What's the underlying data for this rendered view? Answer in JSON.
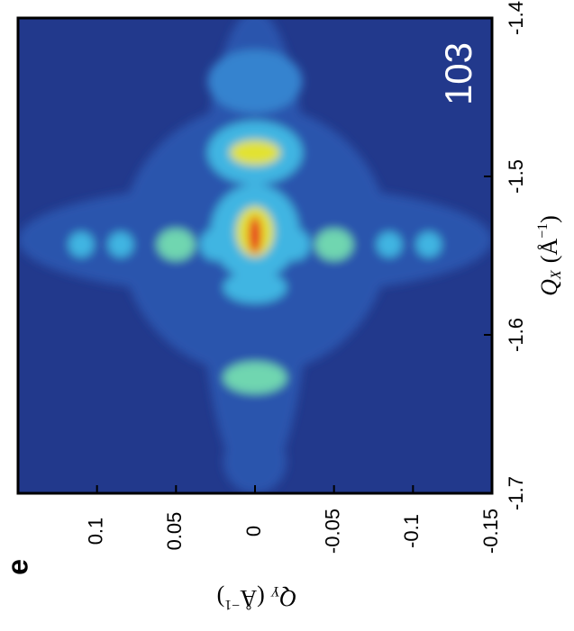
{
  "chart_data": {
    "type": "heatmap",
    "panel_label": "e",
    "annotation": "103",
    "x_label": {
      "symbol": "Q",
      "sub": "X",
      "unit": "(Å",
      "sup": "−1",
      "close": ")"
    },
    "y_label": {
      "symbol": "Q",
      "sub": "Y",
      "unit": "(Å",
      "sup": "−1",
      "close": ")"
    },
    "qx_lim": [
      -1.4,
      -1.7
    ],
    "qx_ticks": [
      -1.4,
      -1.5,
      -1.6,
      -1.7
    ],
    "qy_lim": [
      0.15,
      -0.15
    ],
    "qy_ticks": [
      0.1,
      0.05,
      0,
      -0.05,
      -0.1,
      -0.15
    ],
    "background": "#22398c",
    "colormap": [
      "#22398c",
      "#2b55ad",
      "#3583cf",
      "#3fb5e2",
      "#6fd6b0",
      "#e2e233",
      "#e8241a"
    ],
    "spots": [
      {
        "qy": 0,
        "qx": -1.545,
        "rqy": 0.035,
        "rqx": 0.15,
        "level": 1
      },
      {
        "qy": 0,
        "qx": -1.54,
        "rqy": 0.15,
        "rqx": 0.035,
        "level": 1
      },
      {
        "qy": 0,
        "qx": -1.54,
        "rqy": 0.085,
        "rqx": 0.085,
        "level": 1
      },
      {
        "qy": 0,
        "qx": -1.44,
        "rqy": 0.03,
        "rqx": 0.02,
        "level": 2
      },
      {
        "qy": 0,
        "qx": -1.485,
        "rqy": 0.03,
        "rqx": 0.02,
        "level": 3
      },
      {
        "qy": 0,
        "qx": -1.485,
        "rqy": 0.016,
        "rqx": 0.008,
        "level": 5
      },
      {
        "qy": 0,
        "qx": -1.535,
        "rqy": 0.028,
        "rqx": 0.03,
        "level": 3
      },
      {
        "qy": 0,
        "qx": -1.535,
        "rqy": 0.012,
        "rqx": 0.016,
        "level": 5
      },
      {
        "qy": 0,
        "qx": -1.537,
        "rqy": 0.004,
        "rqx": 0.012,
        "level": 6
      },
      {
        "qy": 0.11,
        "qx": -1.543,
        "rqy": 0.008,
        "rqx": 0.008,
        "level": 3
      },
      {
        "qy": 0.085,
        "qx": -1.543,
        "rqy": 0.008,
        "rqx": 0.008,
        "level": 3
      },
      {
        "qy": 0.05,
        "qx": -1.543,
        "rqy": 0.012,
        "rqx": 0.01,
        "level": 4
      },
      {
        "qy": 0.025,
        "qx": -1.543,
        "rqy": 0.01,
        "rqx": 0.01,
        "level": 3
      },
      {
        "qy": -0.025,
        "qx": -1.543,
        "rqy": 0.01,
        "rqx": 0.01,
        "level": 3
      },
      {
        "qy": -0.05,
        "qx": -1.543,
        "rqy": 0.012,
        "rqx": 0.01,
        "level": 4
      },
      {
        "qy": -0.085,
        "qx": -1.543,
        "rqy": 0.008,
        "rqx": 0.008,
        "level": 3
      },
      {
        "qy": -0.11,
        "qx": -1.543,
        "rqy": 0.008,
        "rqx": 0.008,
        "level": 3
      },
      {
        "qy": 0,
        "qx": -1.57,
        "rqy": 0.02,
        "rqx": 0.01,
        "level": 3
      },
      {
        "qy": 0,
        "qx": -1.627,
        "rqy": 0.02,
        "rqx": 0.01,
        "level": 4
      },
      {
        "qy": 0,
        "qx": -1.68,
        "rqy": 0.02,
        "rqx": 0.02,
        "level": 1
      }
    ]
  }
}
